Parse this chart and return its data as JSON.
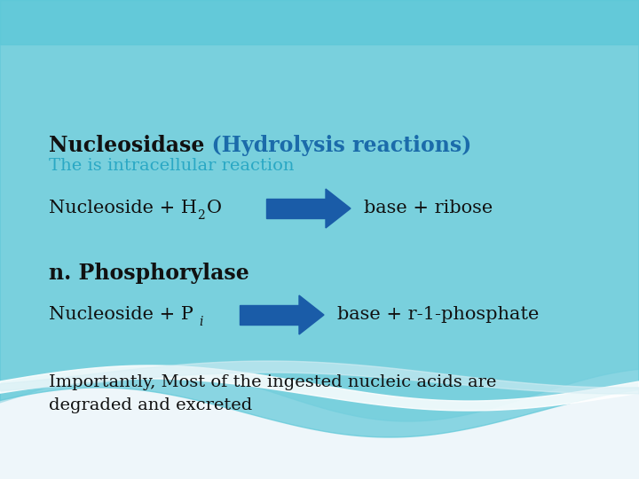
{
  "title_black": "Nucleosidase",
  "title_blue": "  (Hydrolysis reactions)",
  "subtitle": "The is intracellular reaction",
  "reaction1_right": "base + ribose",
  "section2": "n. Phosphorylase",
  "reaction2_right": "base + r-1-phosphate",
  "footer": "Importantly, Most of the ingested nucleic acids are\ndegraded and excreted",
  "arrow_color": "#1A5CA8",
  "title_color_black": "#111111",
  "title_color_blue": "#1B6BAA",
  "subtitle_color": "#2AA8C4",
  "body_color": "#111111",
  "bg_color": "#EEF6FA",
  "wave_color_back": "#A8DDE8",
  "wave_color_front": "#5EC8D8",
  "wave_color_white": "#D8EFF5"
}
